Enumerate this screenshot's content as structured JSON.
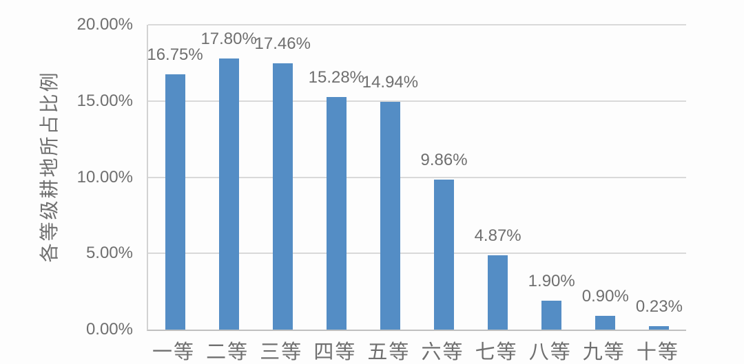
{
  "chart_data": {
    "type": "bar",
    "title": "",
    "xlabel": "",
    "ylabel": "各等级耕地所占比例",
    "categories": [
      "一等",
      "二等",
      "三等",
      "四等",
      "五等",
      "六等",
      "七等",
      "八等",
      "九等",
      "十等"
    ],
    "values": [
      16.75,
      17.8,
      17.46,
      15.28,
      14.94,
      9.86,
      4.87,
      1.9,
      0.9,
      0.23
    ],
    "data_labels": [
      "16.75%",
      "17.80%",
      "17.46%",
      "15.28%",
      "14.94%",
      "9.86%",
      "4.87%",
      "1.90%",
      "0.90%",
      "0.23%"
    ],
    "ylim": [
      0,
      20
    ],
    "yticks": [
      0,
      5,
      10,
      15,
      20
    ],
    "ytick_labels": [
      "0.00%",
      "5.00%",
      "10.00%",
      "15.00%",
      "20.00%"
    ],
    "grid": true,
    "legend": false,
    "colors": {
      "bar": "#548dc5",
      "text": "#6f6f6f",
      "gridline": "#d9d9d9",
      "axis_line": "#bfbfbf"
    }
  }
}
